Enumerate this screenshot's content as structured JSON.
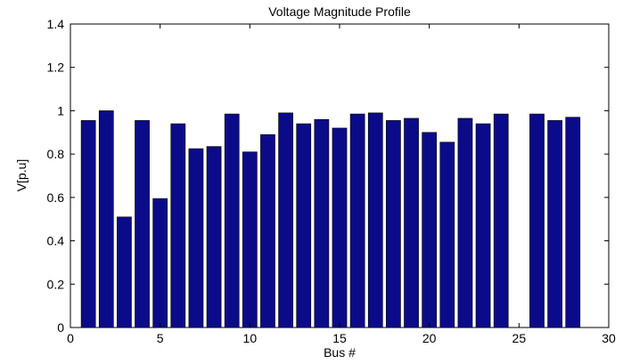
{
  "chart_data": {
    "type": "bar",
    "title": "Voltage Magnitude Profile",
    "xlabel": "Bus #",
    "ylabel": "V[p.u]",
    "xlim": [
      0,
      30
    ],
    "ylim": [
      0,
      1.4
    ],
    "x_ticks": [
      0,
      5,
      10,
      15,
      20,
      25,
      30
    ],
    "y_ticks": [
      "0",
      "0.2",
      "0.4",
      "0.6",
      "0.8",
      "1",
      "1.2",
      "1.4"
    ],
    "bar_color": "#0b0b8a",
    "categories": [
      1,
      2,
      3,
      4,
      5,
      6,
      7,
      8,
      9,
      10,
      11,
      12,
      13,
      14,
      15,
      16,
      17,
      18,
      19,
      20,
      21,
      22,
      23,
      24,
      25,
      26,
      27,
      28
    ],
    "values": [
      0.955,
      1.0,
      0.51,
      0.955,
      0.595,
      0.94,
      0.825,
      0.835,
      0.985,
      0.81,
      0.89,
      0.99,
      0.94,
      0.96,
      0.92,
      0.985,
      0.99,
      0.955,
      0.965,
      0.9,
      0.855,
      0.965,
      0.94,
      0.985,
      0.0,
      0.985,
      0.955,
      0.97
    ],
    "grid": false
  }
}
